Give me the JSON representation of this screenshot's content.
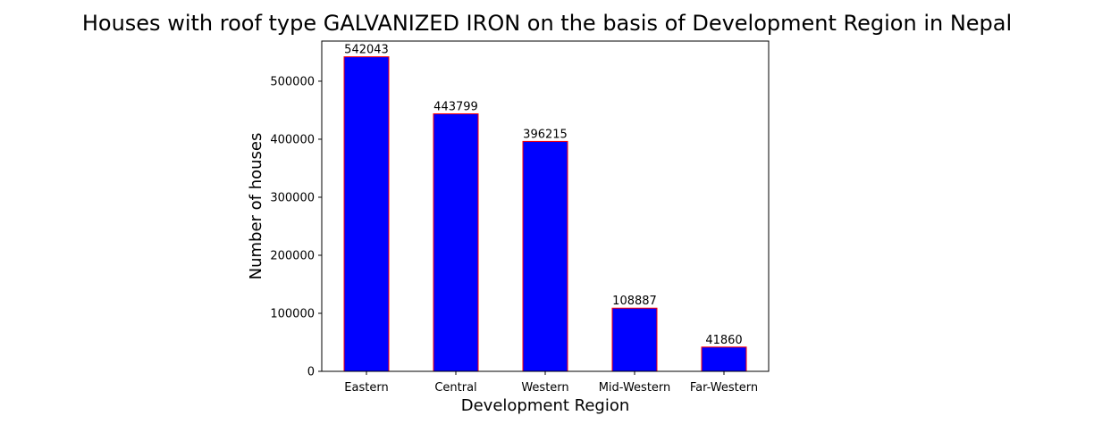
{
  "chart_data": {
    "type": "bar",
    "title": "Houses with roof type GALVANIZED IRON on the basis of Development Region in Nepal",
    "xlabel": "Development Region",
    "ylabel": "Number of houses",
    "categories": [
      "Eastern",
      "Central",
      "Western",
      "Mid-Western",
      "Far-Western"
    ],
    "values": [
      542043,
      443799,
      396215,
      108887,
      41860
    ],
    "data_labels": [
      "542043",
      "443799",
      "396215",
      "108887",
      "41860"
    ],
    "ylim": [
      0,
      569145
    ],
    "yticks": [
      0,
      100000,
      200000,
      300000,
      400000,
      500000
    ],
    "ytick_labels": [
      "0",
      "100000",
      "200000",
      "300000",
      "400000",
      "500000"
    ],
    "grid": false,
    "legend": "none",
    "bar_color": "#0000ff",
    "bar_edge_color": "#ff0000"
  }
}
